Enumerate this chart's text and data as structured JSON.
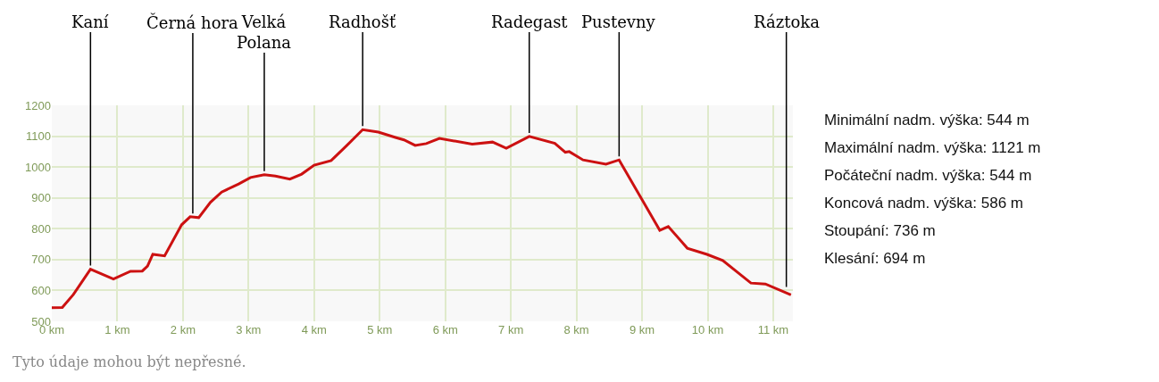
{
  "chart_data": {
    "type": "line",
    "x": [
      0,
      0.16,
      0.33,
      0.59,
      0.94,
      1.2,
      1.38,
      1.46,
      1.54,
      1.72,
      1.98,
      2.11,
      2.24,
      2.42,
      2.59,
      2.85,
      3.03,
      3.24,
      3.41,
      3.63,
      3.81,
      4.0,
      4.26,
      4.5,
      4.74,
      4.98,
      5.24,
      5.37,
      5.54,
      5.71,
      5.91,
      6.41,
      6.72,
      6.93,
      7.28,
      7.67,
      7.83,
      7.89,
      8.1,
      8.45,
      8.65,
      9.27,
      9.4,
      9.69,
      9.99,
      10.23,
      10.66,
      10.88,
      11.27
    ],
    "series": [
      {
        "color": "#cc1111",
        "values": [
          544,
          545,
          587,
          669,
          637,
          662,
          663,
          679,
          717,
          712,
          813,
          839,
          836,
          886,
          919,
          945,
          966,
          975,
          971,
          961,
          977,
          1006,
          1021,
          1070,
          1121,
          1113,
          1096,
          1088,
          1070,
          1076,
          1093,
          1074,
          1081,
          1061,
          1099,
          1077,
          1048,
          1050,
          1023,
          1009,
          1023,
          795,
          807,
          737,
          717,
          697,
          624,
          621,
          586
        ]
      }
    ],
    "xlim": [
      0,
      11.3
    ],
    "ylim": [
      500,
      1200
    ],
    "xticks": [
      {
        "value": 0,
        "label": "0 km"
      },
      {
        "value": 1,
        "label": "1 km"
      },
      {
        "value": 2,
        "label": "2 km"
      },
      {
        "value": 3,
        "label": "3 km"
      },
      {
        "value": 4,
        "label": "4 km"
      },
      {
        "value": 5,
        "label": "5 km"
      },
      {
        "value": 6,
        "label": "6 km"
      },
      {
        "value": 7,
        "label": "7 km"
      },
      {
        "value": 8,
        "label": "8 km"
      },
      {
        "value": 9,
        "label": "9 km"
      },
      {
        "value": 10,
        "label": "10 km"
      },
      {
        "value": 11,
        "label": "11 km"
      }
    ],
    "yticks": [
      500,
      600,
      700,
      800,
      900,
      1000,
      1100,
      1200
    ],
    "grid": true,
    "marker": "none",
    "line_style": "solid",
    "annotations": [
      {
        "text": "Kaní",
        "x": 0.59,
        "y": 669
      },
      {
        "text": "Černá hora",
        "x": 2.15,
        "y": 838
      },
      {
        "text": "Velká Polana",
        "x": 3.24,
        "y": 975
      },
      {
        "text": "Radhošť",
        "x": 4.74,
        "y": 1121
      },
      {
        "text": "Radegast",
        "x": 7.28,
        "y": 1099
      },
      {
        "text": "Pustevny",
        "x": 8.65,
        "y": 1023
      },
      {
        "text": "Ráztoka",
        "x": 11.2,
        "y": 600
      },
      "Minimální nadm. výška: 544 m",
      "Maximální nadm. výška: 1121 m",
      "Počáteční nadm. výška: 544 m",
      "Koncová nadm. výška: 586 m",
      "Stoupání: 736 m",
      "Klesání: 694 m",
      "Tyto údaje mohou být nepřesné."
    ]
  }
}
